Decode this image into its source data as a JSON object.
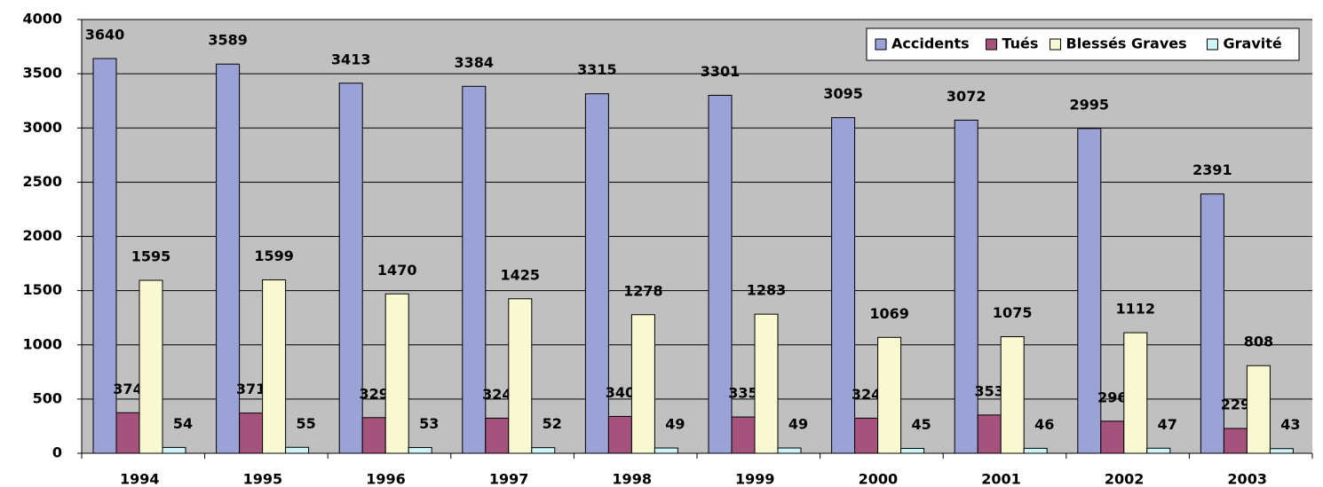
{
  "chart_data": {
    "type": "bar",
    "categories": [
      "1994",
      "1995",
      "1996",
      "1997",
      "1998",
      "1999",
      "2000",
      "2001",
      "2002",
      "2003"
    ],
    "series": [
      {
        "name": "Accidents",
        "color": "#9aa2d6",
        "values": [
          3640,
          3589,
          3413,
          3384,
          3315,
          3301,
          3095,
          3072,
          2995,
          2391
        ]
      },
      {
        "name": "Tués",
        "color": "#a5527c",
        "values": [
          374,
          371,
          329,
          324,
          340,
          335,
          324,
          353,
          296,
          229
        ]
      },
      {
        "name": "Blessés Graves",
        "color": "#fafad2",
        "values": [
          1595,
          1599,
          1470,
          1425,
          1278,
          1283,
          1069,
          1075,
          1112,
          808
        ]
      },
      {
        "name": "Gravité",
        "color": "#cdf5f7",
        "values": [
          54,
          55,
          53,
          52,
          49,
          49,
          45,
          46,
          47,
          43
        ]
      }
    ],
    "ylim": [
      0,
      4000
    ],
    "yticks": [
      0,
      500,
      1000,
      1500,
      2000,
      2500,
      3000,
      3500,
      4000
    ],
    "grid": true,
    "legend": "upper right"
  }
}
